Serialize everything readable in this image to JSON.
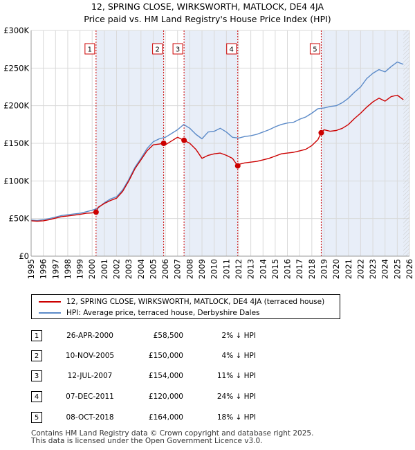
{
  "title_line1": "12, SPRING CLOSE, WIRKSWORTH, MATLOCK, DE4 4JA",
  "title_line2": "Price paid vs. HM Land Registry's House Price Index (HPI)",
  "colors": {
    "price": "#cc0000",
    "hpi": "#5b8ac8",
    "shade": "#e8eef8",
    "grid": "#d9d9d9",
    "vline": "#cc0000"
  },
  "legend": {
    "price_label": "12, SPRING CLOSE, WIRKSWORTH, MATLOCK, DE4 4JA (terraced house)",
    "hpi_label": "HPI: Average price, terraced house, Derbyshire Dales"
  },
  "sales": [
    {
      "num": "1",
      "date": "26-APR-2000",
      "price": "£58,500",
      "hpi": "2% ↓ HPI",
      "t": 2000.32,
      "v": 58500
    },
    {
      "num": "2",
      "date": "10-NOV-2005",
      "price": "£150,000",
      "hpi": "4% ↓ HPI",
      "t": 2005.86,
      "v": 150000
    },
    {
      "num": "3",
      "date": "12-JUL-2007",
      "price": "£154,000",
      "hpi": "11% ↓ HPI",
      "t": 2007.53,
      "v": 154000
    },
    {
      "num": "4",
      "date": "07-DEC-2011",
      "price": "£120,000",
      "hpi": "24% ↓ HPI",
      "t": 2011.93,
      "v": 120000
    },
    {
      "num": "5",
      "date": "08-OCT-2018",
      "price": "£164,000",
      "hpi": "18% ↓ HPI",
      "t": 2018.77,
      "v": 164000
    }
  ],
  "footer_line1": "Contains HM Land Registry data © Crown copyright and database right 2025.",
  "footer_line2": "This data is licensed under the Open Government Licence v3.0.",
  "chart_data": {
    "type": "line",
    "title": "12, SPRING CLOSE, WIRKSWORTH, MATLOCK, DE4 4JA — Price paid vs. HM Land Registry's House Price Index (HPI)",
    "xlabel": "",
    "ylabel": "",
    "xlim": [
      1995,
      2026
    ],
    "ylim": [
      0,
      300000
    ],
    "x_ticks": [
      1995,
      1996,
      1997,
      1998,
      1999,
      2000,
      2001,
      2002,
      2003,
      2004,
      2005,
      2006,
      2007,
      2008,
      2009,
      2010,
      2011,
      2012,
      2013,
      2014,
      2015,
      2016,
      2017,
      2018,
      2019,
      2020,
      2021,
      2022,
      2023,
      2024,
      2025,
      2026
    ],
    "y_ticks": [
      0,
      50000,
      100000,
      150000,
      200000,
      250000,
      300000
    ],
    "y_tick_labels": [
      "£0",
      "£50K",
      "£100K",
      "£150K",
      "£200K",
      "£250K",
      "£300K"
    ],
    "grid": true,
    "series": [
      {
        "name": "HPI: Average price, terraced house, Derbyshire Dales",
        "x": [
          1995.0,
          1995.5,
          1996.0,
          1996.5,
          1997.0,
          1997.5,
          1998.0,
          1998.5,
          1999.0,
          1999.5,
          2000.0,
          2000.5,
          2001.0,
          2001.5,
          2002.0,
          2002.5,
          2003.0,
          2003.5,
          2004.0,
          2004.5,
          2005.0,
          2005.5,
          2006.0,
          2006.5,
          2007.0,
          2007.5,
          2008.0,
          2008.5,
          2009.0,
          2009.5,
          2010.0,
          2010.5,
          2011.0,
          2011.5,
          2012.0,
          2012.5,
          2013.0,
          2013.5,
          2014.0,
          2014.5,
          2015.0,
          2015.5,
          2016.0,
          2016.5,
          2017.0,
          2017.5,
          2018.0,
          2018.5,
          2019.0,
          2019.5,
          2020.0,
          2020.5,
          2021.0,
          2021.5,
          2022.0,
          2022.5,
          2023.0,
          2023.5,
          2024.0,
          2024.5,
          2025.0,
          2025.5
        ],
        "values": [
          48000,
          47500,
          48500,
          50000,
          52000,
          54000,
          55000,
          56000,
          57000,
          59000,
          61000,
          64000,
          71000,
          76000,
          79000,
          88000,
          102000,
          118000,
          130000,
          143000,
          152000,
          156000,
          158000,
          163000,
          168000,
          175000,
          170000,
          162000,
          156000,
          165000,
          166000,
          170000,
          165000,
          158000,
          157000,
          159000,
          160000,
          162000,
          165000,
          168000,
          172000,
          175000,
          177000,
          178000,
          182000,
          185000,
          190000,
          196000,
          197000,
          199000,
          200000,
          204000,
          210000,
          218000,
          225000,
          236000,
          243000,
          248000,
          245000,
          252000,
          258000,
          255000
        ]
      },
      {
        "name": "12, SPRING CLOSE, WIRKSWORTH, MATLOCK, DE4 4JA (terraced house)",
        "x": [
          1995.0,
          1995.5,
          1996.0,
          1996.5,
          1997.0,
          1997.5,
          1998.0,
          1998.5,
          1999.0,
          1999.5,
          2000.0,
          2000.32,
          2000.5,
          2001.0,
          2001.5,
          2002.0,
          2002.5,
          2003.0,
          2003.5,
          2004.0,
          2004.5,
          2005.0,
          2005.5,
          2005.86,
          2006.0,
          2006.5,
          2007.0,
          2007.53,
          2008.0,
          2008.5,
          2009.0,
          2009.5,
          2010.0,
          2010.5,
          2011.0,
          2011.5,
          2011.93,
          2012.0,
          2012.5,
          2013.0,
          2013.5,
          2014.0,
          2014.5,
          2015.0,
          2015.5,
          2016.0,
          2016.5,
          2017.0,
          2017.5,
          2018.0,
          2018.5,
          2018.77,
          2019.0,
          2019.5,
          2020.0,
          2020.5,
          2021.0,
          2021.5,
          2022.0,
          2022.5,
          2023.0,
          2023.5,
          2024.0,
          2024.5,
          2025.0,
          2025.5
        ],
        "values": [
          47000,
          46500,
          47000,
          48500,
          50500,
          52500,
          53500,
          54500,
          55500,
          57000,
          57500,
          58500,
          65000,
          70000,
          74000,
          77000,
          86000,
          100000,
          116000,
          128000,
          140000,
          148000,
          149000,
          150000,
          148000,
          153000,
          158000,
          154000,
          150000,
          142000,
          130000,
          134000,
          136000,
          137000,
          134000,
          130000,
          120000,
          122000,
          124000,
          125000,
          126000,
          128000,
          130000,
          133000,
          136000,
          137000,
          138000,
          140000,
          142000,
          147000,
          155000,
          164000,
          168000,
          166000,
          167000,
          170000,
          175000,
          183000,
          190000,
          198000,
          205000,
          210000,
          206000,
          212000,
          214000,
          208000
        ]
      }
    ],
    "markers": [
      {
        "label": "1",
        "x": 2000.32,
        "y": 58500
      },
      {
        "label": "2",
        "x": 2005.86,
        "y": 150000
      },
      {
        "label": "3",
        "x": 2007.53,
        "y": 154000
      },
      {
        "label": "4",
        "x": 2011.93,
        "y": 120000
      },
      {
        "label": "5",
        "x": 2018.77,
        "y": 164000
      }
    ]
  }
}
